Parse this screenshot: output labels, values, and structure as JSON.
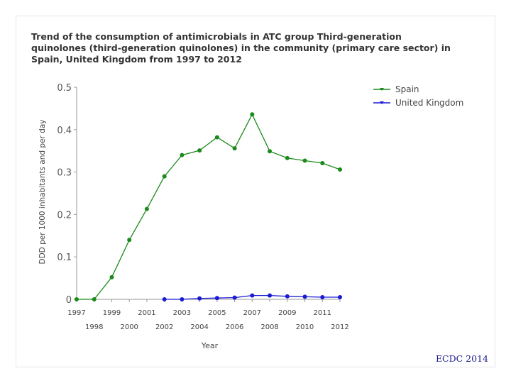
{
  "chart_data": {
    "type": "line",
    "title": "Trend of the consumption of antimicrobials in ATC group Third-generation quinolones (third-generation quinolones) in the community (primary care sector) in Spain, United Kingdom from 1997 to 2012",
    "xlabel": "Year",
    "ylabel": "DDD per 1000 inhabitants and per day",
    "x": [
      1997,
      1998,
      1999,
      2000,
      2001,
      2002,
      2003,
      2004,
      2005,
      2006,
      2007,
      2008,
      2009,
      2010,
      2011,
      2012
    ],
    "xtick_labels": [
      "1997",
      "1998",
      "1999",
      "2000",
      "2001",
      "2002",
      "2003",
      "2004",
      "2005",
      "2006",
      "2007",
      "2008",
      "2009",
      "2010",
      "2011",
      "2012"
    ],
    "ylim": [
      0,
      0.5
    ],
    "yticks": [
      "0",
      "0.1",
      "0.2",
      "0.3",
      "0.4",
      "0.5"
    ],
    "grid": false,
    "legend_position": "top-right",
    "series": [
      {
        "name": "Spain",
        "color": "#1a8a1a",
        "values": [
          0.0,
          0.0,
          0.052,
          0.14,
          0.213,
          0.29,
          0.34,
          0.351,
          0.382,
          0.356,
          0.436,
          0.349,
          0.333,
          0.327,
          0.321,
          0.306
        ]
      },
      {
        "name": "United Kingdom",
        "color": "#1a1ad6",
        "values": [
          null,
          null,
          null,
          null,
          null,
          0.0,
          0.0,
          0.002,
          0.003,
          0.004,
          0.009,
          0.009,
          0.007,
          0.006,
          0.005,
          0.005
        ]
      }
    ]
  },
  "footer": {
    "source": "ECDC 2014"
  }
}
